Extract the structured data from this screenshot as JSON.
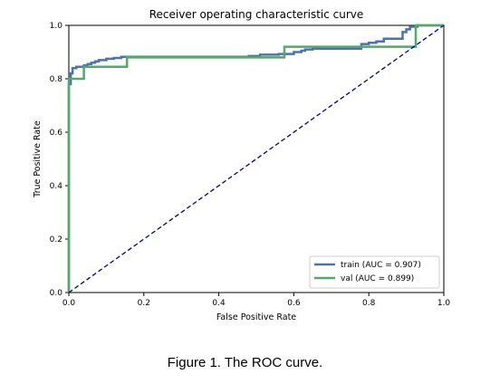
{
  "figure": {
    "caption": "Figure 1. The ROC curve."
  },
  "chart_data": {
    "type": "line",
    "title": "Receiver operating characteristic curve",
    "xlabel": "False Positive Rate",
    "ylabel": "True Positive Rate",
    "xlim": [
      0.0,
      1.0
    ],
    "ylim": [
      0.0,
      1.0
    ],
    "xticks": [
      "0.0",
      "0.2",
      "0.4",
      "0.6",
      "0.8",
      "1.0"
    ],
    "yticks": [
      "0.0",
      "0.2",
      "0.4",
      "0.6",
      "0.8",
      "1.0"
    ],
    "grid": false,
    "legend_position": "lower-right",
    "series": [
      {
        "name": "train (AUC = 0.907)",
        "color": "#4c72b0",
        "points": [
          [
            0.0,
            0.0
          ],
          [
            0.0,
            0.78
          ],
          [
            0.005,
            0.78
          ],
          [
            0.005,
            0.82
          ],
          [
            0.01,
            0.82
          ],
          [
            0.01,
            0.84
          ],
          [
            0.02,
            0.84
          ],
          [
            0.02,
            0.845
          ],
          [
            0.04,
            0.845
          ],
          [
            0.04,
            0.85
          ],
          [
            0.05,
            0.85
          ],
          [
            0.05,
            0.855
          ],
          [
            0.06,
            0.855
          ],
          [
            0.06,
            0.86
          ],
          [
            0.07,
            0.86
          ],
          [
            0.07,
            0.865
          ],
          [
            0.08,
            0.865
          ],
          [
            0.08,
            0.87
          ],
          [
            0.1,
            0.87
          ],
          [
            0.1,
            0.875
          ],
          [
            0.12,
            0.875
          ],
          [
            0.12,
            0.878
          ],
          [
            0.14,
            0.878
          ],
          [
            0.14,
            0.882
          ],
          [
            0.48,
            0.882
          ],
          [
            0.48,
            0.885
          ],
          [
            0.51,
            0.885
          ],
          [
            0.51,
            0.89
          ],
          [
            0.56,
            0.89
          ],
          [
            0.56,
            0.893
          ],
          [
            0.6,
            0.893
          ],
          [
            0.6,
            0.9
          ],
          [
            0.62,
            0.9
          ],
          [
            0.62,
            0.905
          ],
          [
            0.63,
            0.905
          ],
          [
            0.63,
            0.91
          ],
          [
            0.65,
            0.91
          ],
          [
            0.65,
            0.913
          ],
          [
            0.78,
            0.913
          ],
          [
            0.78,
            0.93
          ],
          [
            0.8,
            0.93
          ],
          [
            0.8,
            0.935
          ],
          [
            0.82,
            0.935
          ],
          [
            0.82,
            0.94
          ],
          [
            0.84,
            0.94
          ],
          [
            0.84,
            0.95
          ],
          [
            0.89,
            0.95
          ],
          [
            0.89,
            0.975
          ],
          [
            0.9,
            0.975
          ],
          [
            0.9,
            0.985
          ],
          [
            0.91,
            0.985
          ],
          [
            0.91,
            0.995
          ],
          [
            0.93,
            0.995
          ],
          [
            0.93,
            1.0
          ],
          [
            1.0,
            1.0
          ]
        ]
      },
      {
        "name": "val (AUC = 0.899)",
        "color": "#55a868",
        "points": [
          [
            0.0,
            0.0
          ],
          [
            0.0,
            0.8
          ],
          [
            0.04,
            0.8
          ],
          [
            0.04,
            0.845
          ],
          [
            0.155,
            0.845
          ],
          [
            0.155,
            0.88
          ],
          [
            0.575,
            0.88
          ],
          [
            0.575,
            0.92
          ],
          [
            0.925,
            0.92
          ],
          [
            0.925,
            1.0
          ],
          [
            1.0,
            1.0
          ]
        ]
      }
    ],
    "reference_line": {
      "points": [
        [
          0.0,
          0.0
        ],
        [
          1.0,
          1.0
        ]
      ],
      "color": "#000080",
      "style": "dashed"
    }
  }
}
